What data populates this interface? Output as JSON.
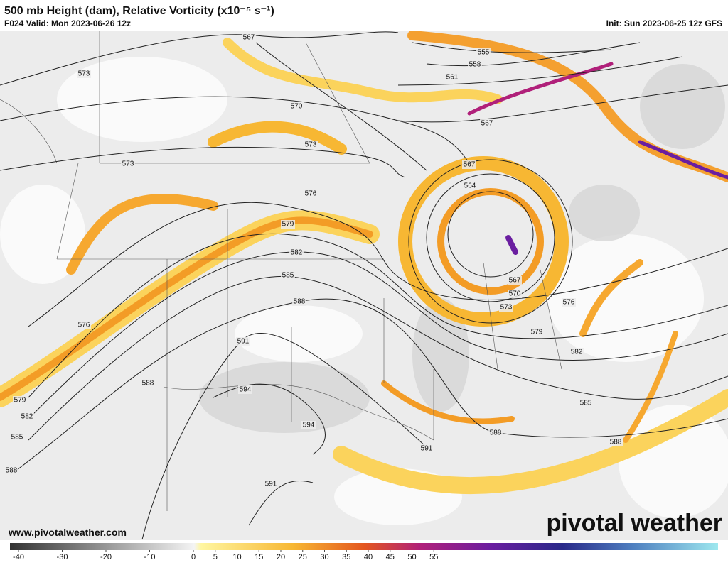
{
  "header": {
    "title": "500 mb Height (dam), Relative Vorticity (x10⁻⁵ s⁻¹)",
    "valid": "F024 Valid: Mon 2023-06-26 12z",
    "init": "Init: Sun 2023-06-25 12z GFS"
  },
  "contour_labels": [
    567,
    555,
    558,
    561,
    573,
    570,
    567,
    573,
    573,
    567,
    564,
    576,
    579,
    582,
    585,
    567,
    570,
    573,
    576,
    588,
    579,
    591,
    582,
    576,
    588,
    594,
    579,
    582,
    585,
    585,
    594,
    591,
    588,
    588,
    588,
    591
  ],
  "colorbar": {
    "ticks": [
      -40,
      -30,
      -20,
      -10,
      0,
      5,
      10,
      15,
      20,
      25,
      30,
      35,
      40,
      45,
      50,
      55
    ]
  },
  "footer": {
    "website": "www.pivotalweather.com",
    "logo": "pivotal weather"
  }
}
